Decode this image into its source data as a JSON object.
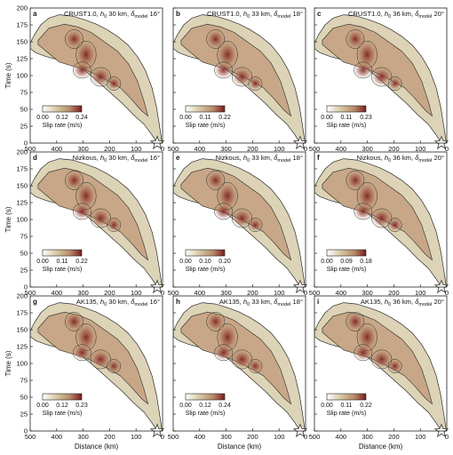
{
  "chart_data": [
    {
      "type": "heatmap",
      "letter": "a",
      "model": "CRUST1.0",
      "h0": "30 km",
      "delta": "16°",
      "cbar_ticks": [
        "0.00",
        "0.12",
        "0.24"
      ]
    },
    {
      "type": "heatmap",
      "letter": "b",
      "model": "CRUST1.0",
      "h0": "33 km",
      "delta": "18°",
      "cbar_ticks": [
        "0.00",
        "0.11",
        "0.22"
      ]
    },
    {
      "type": "heatmap",
      "letter": "c",
      "model": "CRUST1.0",
      "h0": "36 km",
      "delta": "20°",
      "cbar_ticks": [
        "0.00",
        "0.11",
        "0.23"
      ]
    },
    {
      "type": "heatmap",
      "letter": "d",
      "model": "Nizkous",
      "h0": "30 km",
      "delta": "16°",
      "cbar_ticks": [
        "0.00",
        "0.11",
        "0.22"
      ]
    },
    {
      "type": "heatmap",
      "letter": "e",
      "model": "Nizkous",
      "h0": "33 km",
      "delta": "18°",
      "cbar_ticks": [
        "0.00",
        "0.10",
        "0.20"
      ]
    },
    {
      "type": "heatmap",
      "letter": "f",
      "model": "Nizkous",
      "h0": "36 km",
      "delta": "20°",
      "cbar_ticks": [
        "0.00",
        "0.09",
        "0.18"
      ]
    },
    {
      "type": "heatmap",
      "letter": "g",
      "model": "AK135",
      "h0": "30 km",
      "delta": "16°",
      "cbar_ticks": [
        "0.00",
        "0.12",
        "0.23"
      ]
    },
    {
      "type": "heatmap",
      "letter": "h",
      "model": "AK135",
      "h0": "33 km",
      "delta": "18°",
      "cbar_ticks": [
        "0.00",
        "0.12",
        "0.24"
      ]
    },
    {
      "type": "heatmap",
      "letter": "i",
      "model": "AK135",
      "h0": "36 km",
      "delta": "20°",
      "cbar_ticks": [
        "0.00",
        "0.11",
        "0.22"
      ]
    }
  ],
  "axes": {
    "ylabel": "Time (s)",
    "xlabel": "Distance (km)",
    "xlim": [
      500,
      0
    ],
    "ylim": [
      0,
      200
    ],
    "xticks": [
      500,
      400,
      300,
      200,
      100,
      0
    ],
    "yticks": [
      0,
      25,
      50,
      75,
      100,
      125,
      150,
      175,
      200
    ]
  },
  "colorbar": {
    "label": "Slip rate (m/s)",
    "colors": [
      "#ffffff",
      "#d8c8a4",
      "#b88a6c",
      "#7a1c1c"
    ]
  },
  "labels": {
    "h_sym": "h",
    "h_sub": "0",
    "d_sym": "δ",
    "d_sub": "model"
  }
}
